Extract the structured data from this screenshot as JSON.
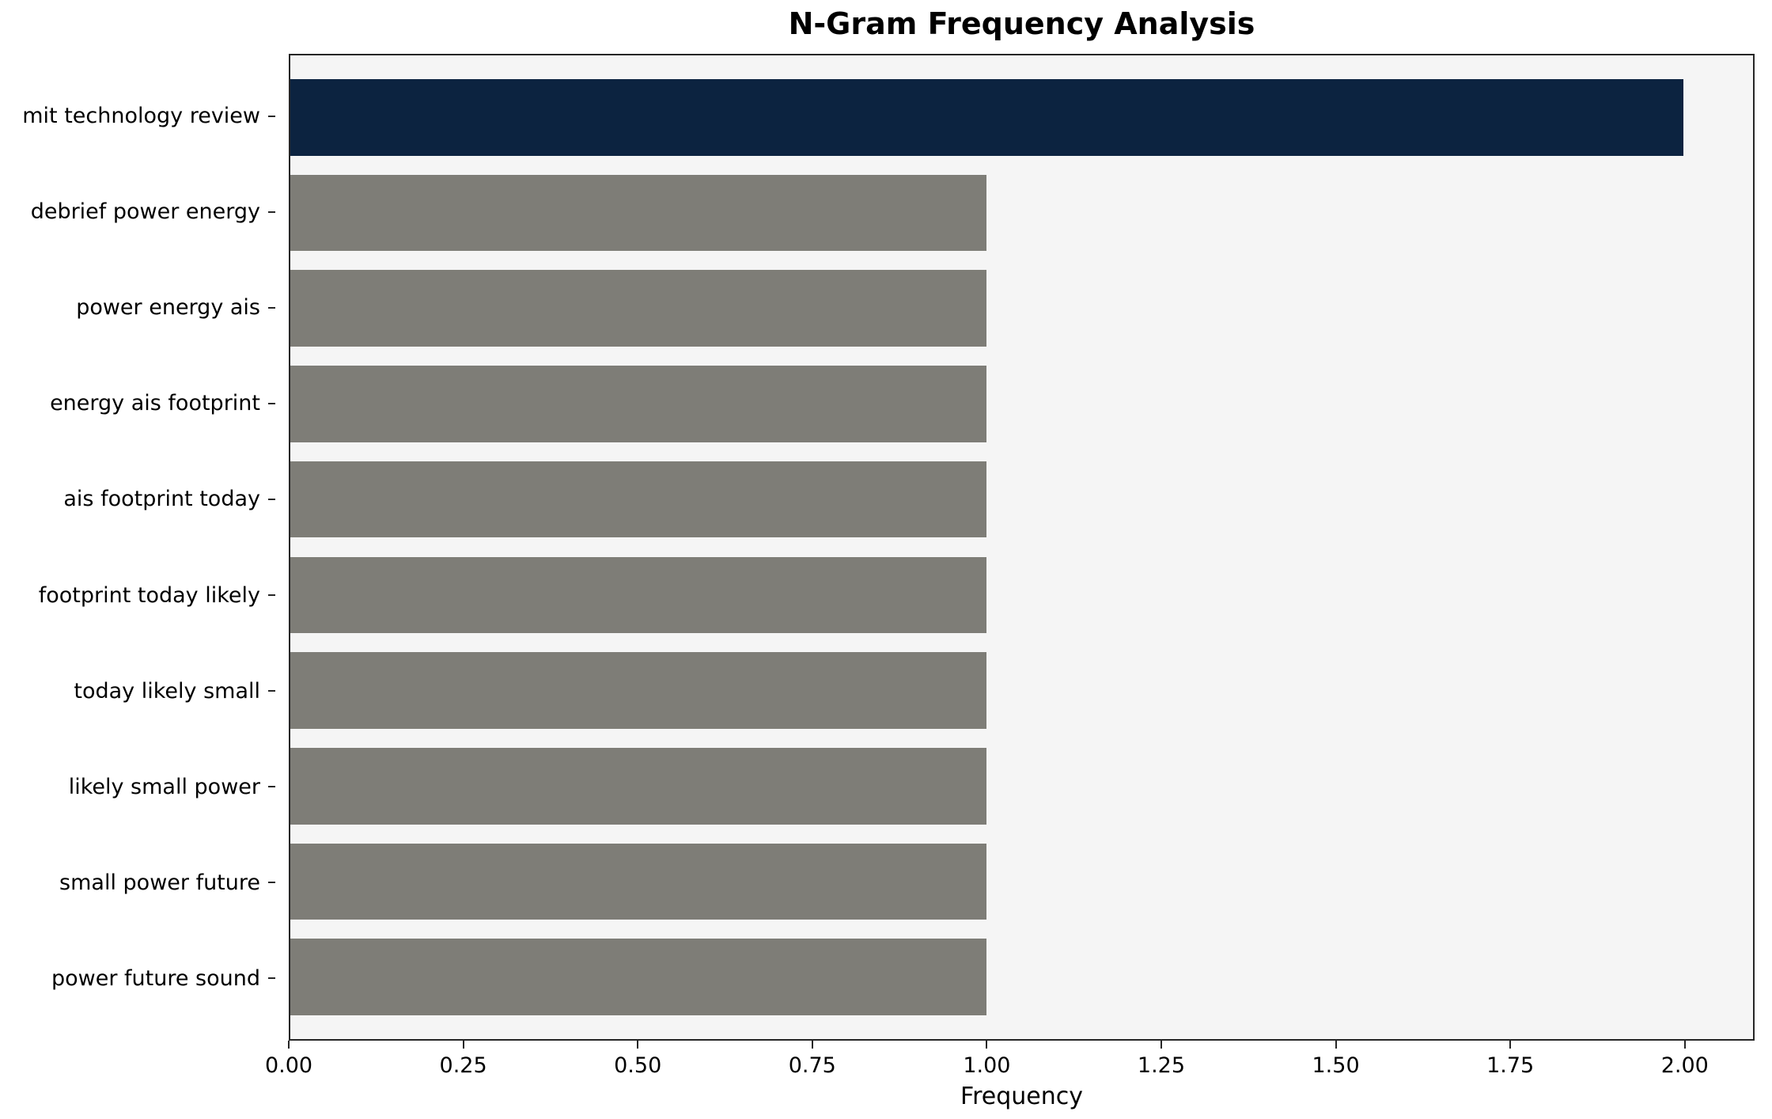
{
  "chart_data": {
    "type": "bar",
    "orientation": "horizontal",
    "title": "N-Gram Frequency Analysis",
    "xlabel": "Frequency",
    "ylabel": "",
    "categories": [
      "mit technology review",
      "debrief power energy",
      "power energy ais",
      "energy ais footprint",
      "ais footprint today",
      "footprint today likely",
      "today likely small",
      "likely small power",
      "small power future",
      "power future sound"
    ],
    "values": [
      2,
      1,
      1,
      1,
      1,
      1,
      1,
      1,
      1,
      1
    ],
    "xlim": [
      0,
      2.1
    ],
    "xticks": [
      0,
      0.25,
      0.5,
      0.75,
      1.0,
      1.25,
      1.5,
      1.75,
      2.0
    ],
    "xtick_labels": [
      "0.00",
      "0.25",
      "0.50",
      "0.75",
      "1.00",
      "1.25",
      "1.50",
      "1.75",
      "2.00"
    ],
    "grid": false,
    "legend": "none",
    "colors": {
      "highlight_bar": "#0c2340",
      "default_bar": "#7e7d77",
      "bar_colors": [
        "#0c2340",
        "#7e7d77",
        "#7e7d77",
        "#7e7d77",
        "#7e7d77",
        "#7e7d77",
        "#7e7d77",
        "#7e7d77",
        "#7e7d77",
        "#7e7d77"
      ],
      "plot_background": "#f5f5f5",
      "figure_background": "#ffffff",
      "spine": "#262626",
      "text": "#000000"
    }
  }
}
